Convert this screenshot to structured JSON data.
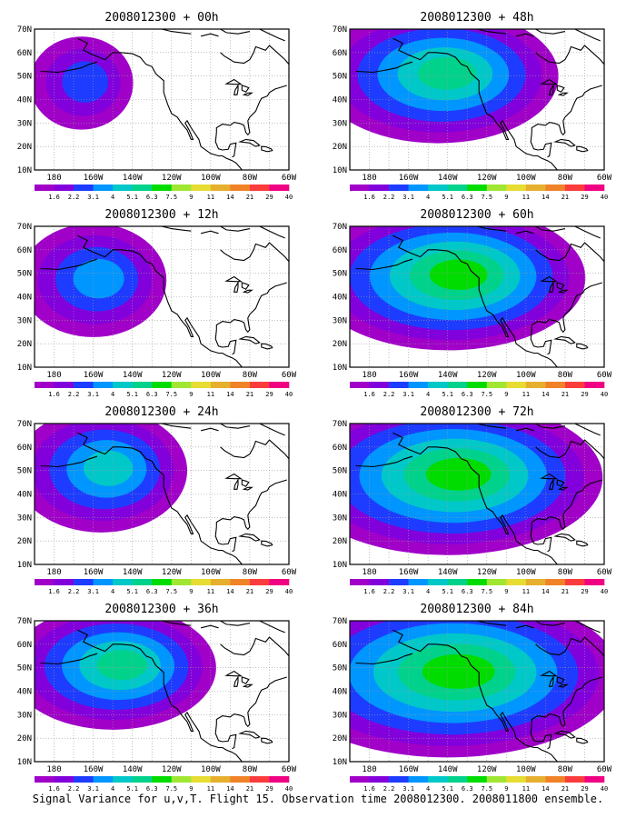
{
  "caption": "Signal Variance for u,v,T. Flight 15. Observation time 2008012300. 2008011800 ensemble.",
  "axes": {
    "lat_labels": [
      "70N",
      "60N",
      "50N",
      "40N",
      "30N",
      "20N",
      "10N"
    ],
    "lon_labels": [
      "180",
      "160W",
      "140W",
      "120W",
      "100W",
      "80W",
      "60W"
    ],
    "lat_range": [
      10,
      70
    ],
    "lon_range": [
      -190,
      -60
    ]
  },
  "colorbar": {
    "labels": [
      "1.6",
      "2.2",
      "3.1",
      "4",
      "5.1",
      "6.3",
      "7.5",
      "9",
      "11",
      "14",
      "21",
      "29",
      "40"
    ],
    "colors": [
      "#a000c8",
      "#8200dc",
      "#1e3cff",
      "#0096ff",
      "#00c8c8",
      "#00d28c",
      "#00dc00",
      "#a0e632",
      "#e6dc32",
      "#e6af2d",
      "#f08228",
      "#fa3c3c",
      "#f00082"
    ]
  },
  "panels": [
    {
      "title": "2008012300 + 00h",
      "level": 0.05,
      "lon": -166,
      "lat": 47,
      "sx": 12,
      "sy": 9
    },
    {
      "title": "2008012300 + 48h",
      "level": 0.55,
      "lon": -145,
      "lat": 50,
      "sx": 28,
      "sy": 13
    },
    {
      "title": "2008012300 + 12h",
      "level": 0.2,
      "lon": -160,
      "lat": 47,
      "sx": 17,
      "sy": 11
    },
    {
      "title": "2008012300 + 60h",
      "level": 0.6,
      "lon": -140,
      "lat": 48,
      "sx": 32,
      "sy": 14
    },
    {
      "title": "2008012300 + 24h",
      "level": 0.35,
      "lon": -156,
      "lat": 50,
      "sx": 20,
      "sy": 12
    },
    {
      "title": "2008012300 + 72h",
      "level": 0.65,
      "lon": -140,
      "lat": 47,
      "sx": 36,
      "sy": 15
    },
    {
      "title": "2008012300 + 36h",
      "level": 0.45,
      "lon": -150,
      "lat": 50,
      "sx": 24,
      "sy": 12
    },
    {
      "title": "2008012300 + 84h",
      "level": 0.7,
      "lon": -140,
      "lat": 47,
      "sx": 40,
      "sy": 16
    }
  ]
}
